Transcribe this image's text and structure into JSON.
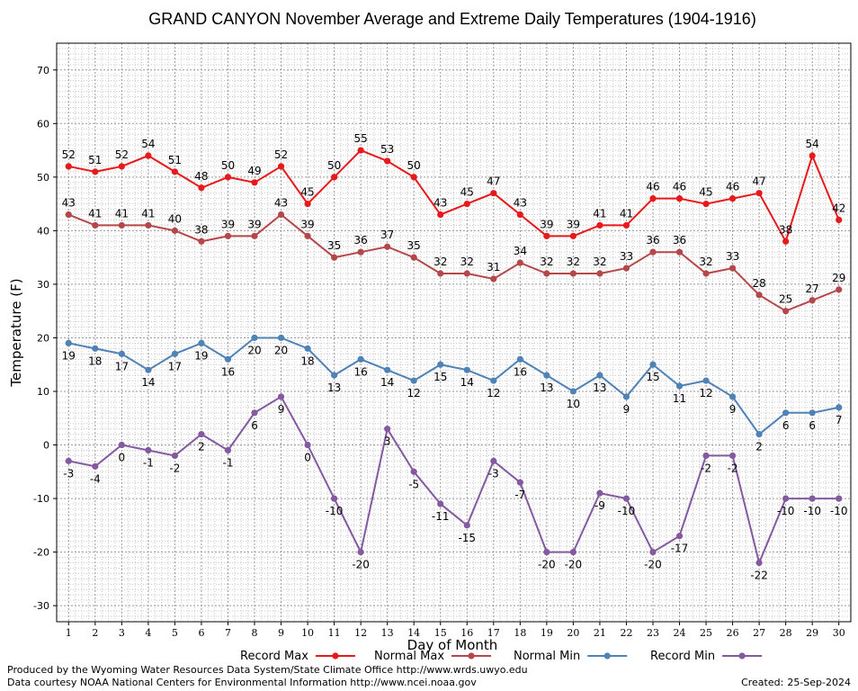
{
  "chart_data": {
    "type": "line",
    "title": "GRAND CANYON November Average and Extreme Daily Temperatures (1904-1916)",
    "xlabel": "Day of Month",
    "ylabel": "Temperature (F)",
    "x": [
      1,
      2,
      3,
      4,
      5,
      6,
      7,
      8,
      9,
      10,
      11,
      12,
      13,
      14,
      15,
      16,
      17,
      18,
      19,
      20,
      21,
      22,
      23,
      24,
      25,
      26,
      27,
      28,
      29,
      30
    ],
    "x_tick_labels": [
      "1",
      "2",
      "3",
      "4",
      "5",
      "6",
      "7",
      "8",
      "9",
      "10",
      "11",
      "12",
      "13",
      "14",
      "15",
      "16",
      "17",
      "18",
      "19",
      "20",
      "21",
      "22",
      "23",
      "24",
      "25",
      "26",
      "27",
      "28",
      "29",
      "30"
    ],
    "ylim": [
      -33,
      75
    ],
    "y_ticks": [
      -30,
      -20,
      -10,
      0,
      10,
      20,
      30,
      40,
      50,
      60,
      70
    ],
    "y_tick_labels": [
      "-30",
      "-20",
      "-10",
      "0",
      "10",
      "20",
      "30",
      "40",
      "50",
      "60",
      "70"
    ],
    "grid": true,
    "legend_position": "bottom",
    "series": [
      {
        "name": "Record Max",
        "color": "#e8191b",
        "label_position": "above",
        "values": [
          52,
          51,
          52,
          54,
          51,
          48,
          50,
          49,
          52,
          45,
          50,
          55,
          53,
          50,
          43,
          45,
          47,
          43,
          39,
          39,
          41,
          41,
          46,
          46,
          45,
          46,
          47,
          38,
          54,
          42
        ],
        "labels": [
          "52",
          "51",
          "52",
          "54",
          "51",
          "48",
          "50",
          "49",
          "52",
          "45",
          "50",
          "55",
          "53",
          "50",
          "43",
          "45",
          "47",
          "43",
          "39",
          "39",
          "41",
          "41",
          "46",
          "46",
          "45",
          "46",
          "47",
          "38",
          "54",
          "42"
        ]
      },
      {
        "name": "Normal Max",
        "color": "#b5474a",
        "label_position": "above",
        "values": [
          43,
          41,
          41,
          41,
          40,
          38,
          39,
          39,
          43,
          39,
          35,
          36,
          37,
          35,
          32,
          32,
          31,
          34,
          32,
          32,
          32,
          33,
          36,
          36,
          32,
          33,
          28,
          25,
          27,
          29
        ],
        "labels": [
          "43",
          "41",
          "41",
          "41",
          "40",
          "38",
          "39",
          "39",
          "43",
          "39",
          "35",
          "36",
          "37",
          "35",
          "32",
          "32",
          "31",
          "34",
          "32",
          "32",
          "32",
          "33",
          "36",
          "36",
          "32",
          "33",
          "28",
          "25",
          "27",
          "29"
        ]
      },
      {
        "name": "Normal Min",
        "color": "#4f82b6",
        "label_position": "below",
        "values": [
          19,
          18,
          17,
          14,
          17,
          19,
          16,
          20,
          20,
          18,
          13,
          16,
          14,
          12,
          15,
          14,
          12,
          16,
          13,
          10,
          13,
          9,
          15,
          11,
          12,
          9,
          2,
          6,
          6,
          7
        ],
        "labels": [
          "19",
          "18",
          "17",
          "14",
          "17",
          "19",
          "16",
          "20",
          "20",
          "18",
          "13",
          "16",
          "14",
          "12",
          "15",
          "14",
          "12",
          "16",
          "13",
          "10",
          "13",
          "9",
          "15",
          "11",
          "12",
          "9",
          "2",
          "6",
          "6",
          "7"
        ]
      },
      {
        "name": "Record Min",
        "color": "#8459a0",
        "label_position": "below",
        "values": [
          -3,
          -4,
          0,
          -1,
          -2,
          2,
          -1,
          6,
          9,
          0,
          -10,
          -20,
          3,
          -5,
          -11,
          -15,
          -3,
          -7,
          -20,
          -20,
          -9,
          -10,
          -20,
          -17,
          -2,
          -2,
          -22,
          -10,
          -10,
          -10
        ],
        "labels": [
          "-3",
          "-4",
          "0",
          "-1",
          "-2",
          "2",
          "-1",
          "6",
          "9",
          "0",
          "-10",
          "-20",
          "3",
          "-5",
          "-11",
          "-15",
          "-3",
          "-7",
          "-20",
          "-20",
          "-9",
          "-10",
          "-20",
          "-17",
          "-2",
          "-2",
          "-22",
          "-10",
          "-10",
          "-10"
        ]
      }
    ]
  },
  "footer": {
    "credit": "Produced by the Wyoming Water Resources Data System/State Climate Office http://www.wrds.uwyo.edu",
    "data_source": "Data courtesy NOAA National Centers for Environmental Information http://www.ncei.noaa.gov",
    "created_label": "Created:",
    "created_date": "25-Sep-2024"
  }
}
